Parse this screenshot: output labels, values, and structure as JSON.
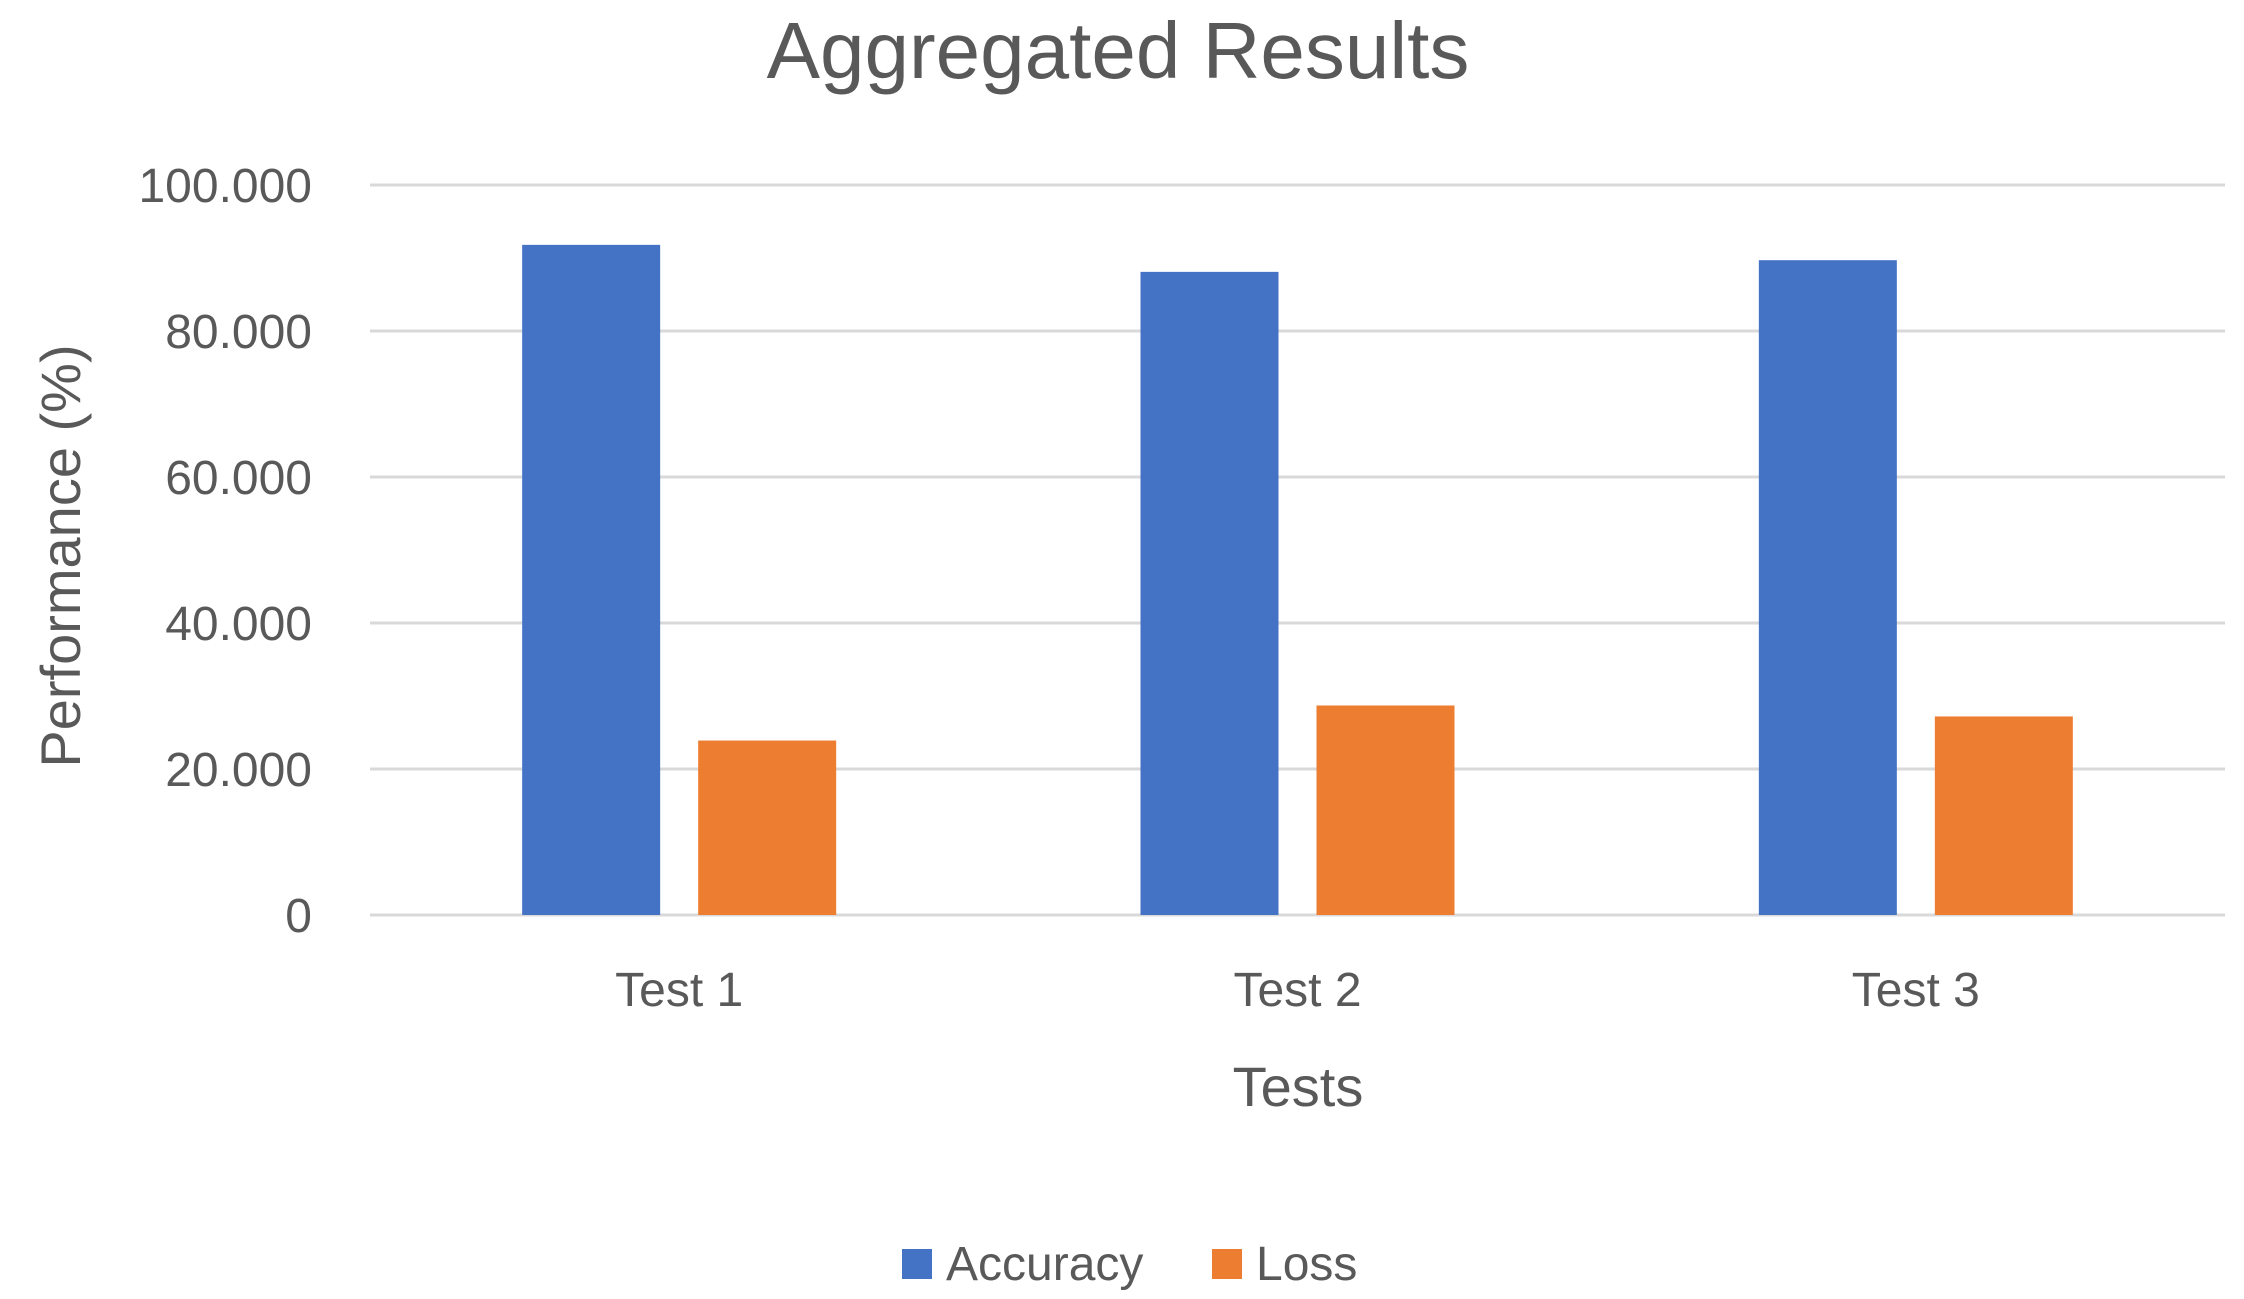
{
  "chart_data": {
    "type": "bar",
    "title": "Aggregated Results",
    "xlabel": "Tests",
    "ylabel": "Performance (%)",
    "categories": [
      "Test 1",
      "Test 2",
      "Test 3"
    ],
    "series": [
      {
        "name": "Accuracy",
        "color": "#4472C4",
        "values": [
          91.8,
          88.1,
          89.7
        ]
      },
      {
        "name": "Loss",
        "color": "#ED7D31",
        "values": [
          23.9,
          28.7,
          27.2
        ]
      }
    ],
    "ylim": [
      0,
      100
    ],
    "yticks": [
      0,
      20,
      40,
      60,
      80,
      100
    ],
    "ytick_labels": [
      "0",
      "20.000",
      "40.000",
      "60.000",
      "80.000",
      "100.000"
    ],
    "grid": true,
    "legend_position": "bottom"
  }
}
